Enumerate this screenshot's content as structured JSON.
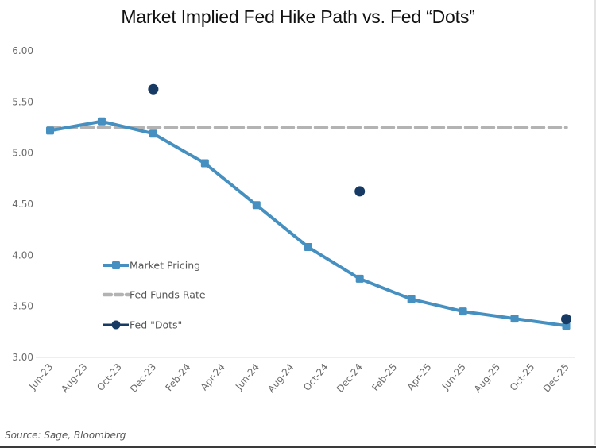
{
  "chart_data": {
    "type": "line",
    "title": "Market Implied Fed Hike Path vs. Fed “Dots”",
    "xlabel": "",
    "ylabel": "",
    "ylim": [
      3.0,
      6.0
    ],
    "yticks": [
      "3.00",
      "3.50",
      "4.00",
      "4.50",
      "5.00",
      "5.50",
      "6.00"
    ],
    "ytick_values": [
      3.0,
      3.5,
      4.0,
      4.5,
      5.0,
      5.5,
      6.0
    ],
    "xrange_months": [
      "Jun-23",
      "Dec-25"
    ],
    "xticks": [
      "Jun-23",
      "Aug-23",
      "Oct-23",
      "Dec-23",
      "Feb-24",
      "Apr-24",
      "Jun-24",
      "Aug-24",
      "Oct-24",
      "Dec-24",
      "Feb-25",
      "Apr-25",
      "Jun-25",
      "Aug-25",
      "Oct-25",
      "Dec-25"
    ],
    "grid": false,
    "legend_position": "left-center",
    "series": [
      {
        "name": "Market Pricing",
        "style": "line-square-markers",
        "color": "#4590c0",
        "x": [
          "Jun-23",
          "Sep-23",
          "Dec-23",
          "Mar-24",
          "Jun-24",
          "Sep-24",
          "Dec-24",
          "Mar-25",
          "Jun-25",
          "Sep-25",
          "Dec-25"
        ],
        "values": [
          5.22,
          5.31,
          5.19,
          4.9,
          4.49,
          4.08,
          3.77,
          3.57,
          3.45,
          3.38,
          3.31
        ]
      },
      {
        "name": "Fed Funds Rate",
        "style": "dashed",
        "color": "#b3b3b3",
        "x": [
          "Jun-23",
          "Dec-25"
        ],
        "values": [
          5.25,
          5.25
        ]
      },
      {
        "name": "Fed \"Dots\"",
        "style": "markers-only-circle",
        "color": "#163a63",
        "x": [
          "Dec-23",
          "Dec-24",
          "Dec-25"
        ],
        "values": [
          5.625,
          4.625,
          3.375
        ]
      }
    ]
  },
  "source": "Source: Sage, Bloomberg"
}
